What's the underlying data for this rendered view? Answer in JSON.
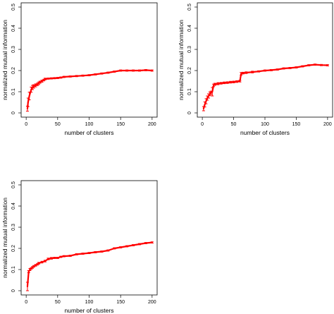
{
  "chart_data": [
    {
      "type": "line",
      "xlabel": "number of clusters",
      "ylabel": "normalized mutual information",
      "xlim": [
        0,
        200
      ],
      "ylim": [
        0,
        0.5
      ],
      "xticks": [
        0,
        50,
        100,
        150,
        200
      ],
      "yticks": [
        0,
        0.1,
        0.2,
        0.3,
        0.4,
        0.5
      ],
      "ytick_labels": [
        "0",
        "0.1",
        "0.2",
        "0.3",
        "0.4",
        "0.5"
      ],
      "series_color": "#ff0000",
      "series": [
        {
          "x": [
            2,
            3,
            5,
            8,
            10,
            12,
            15,
            18,
            20,
            22,
            25,
            28,
            30,
            35,
            40,
            45,
            50,
            55,
            60,
            70,
            80,
            90,
            100,
            110,
            120,
            130,
            140,
            150,
            160,
            170,
            180,
            190,
            200
          ],
          "y": [
            0.02,
            0.05,
            0.08,
            0.11,
            0.12,
            0.125,
            0.13,
            0.135,
            0.14,
            0.145,
            0.15,
            0.155,
            0.16,
            0.162,
            0.163,
            0.164,
            0.165,
            0.167,
            0.17,
            0.172,
            0.174,
            0.176,
            0.178,
            0.182,
            0.186,
            0.19,
            0.195,
            0.2,
            0.2,
            0.2,
            0.2,
            0.202,
            0.2
          ],
          "err": [
            0.012,
            0.02,
            0.018,
            0.012,
            0.01,
            0.008,
            0.007,
            0.006,
            0.006,
            0.005,
            0.005,
            0.004,
            0.004,
            0.003,
            0.003,
            0.003,
            0.003,
            0.003,
            0.003,
            0.003,
            0.003,
            0.003,
            0.003,
            0.003,
            0.003,
            0.003,
            0.003,
            0.003,
            0.003,
            0.003,
            0.003,
            0.003,
            0.003
          ]
        }
      ]
    },
    {
      "type": "line",
      "xlabel": "number of clusters",
      "ylabel": "normalized mutual information",
      "xlim": [
        0,
        200
      ],
      "ylim": [
        0,
        0.5
      ],
      "xticks": [
        0,
        50,
        100,
        150,
        200
      ],
      "yticks": [
        0,
        0.1,
        0.2,
        0.3,
        0.4,
        0.5
      ],
      "ytick_labels": [
        "0",
        "0.1",
        "0.2",
        "0.3",
        "0.4",
        "0.5"
      ],
      "series_color": "#ff0000",
      "series": [
        {
          "x": [
            2,
            4,
            6,
            8,
            10,
            12,
            14,
            16,
            18,
            20,
            25,
            30,
            35,
            40,
            45,
            50,
            55,
            60,
            62,
            65,
            70,
            80,
            90,
            100,
            110,
            120,
            130,
            140,
            150,
            160,
            170,
            180,
            190,
            200
          ],
          "y": [
            0.02,
            0.04,
            0.055,
            0.07,
            0.08,
            0.09,
            0.095,
            0.1,
            0.13,
            0.135,
            0.138,
            0.14,
            0.142,
            0.143,
            0.145,
            0.146,
            0.148,
            0.15,
            0.185,
            0.188,
            0.19,
            0.193,
            0.196,
            0.2,
            0.202,
            0.205,
            0.21,
            0.212,
            0.215,
            0.22,
            0.225,
            0.228,
            0.226,
            0.225
          ],
          "err": [
            0.01,
            0.012,
            0.012,
            0.01,
            0.01,
            0.009,
            0.008,
            0.02,
            0.006,
            0.005,
            0.005,
            0.004,
            0.004,
            0.004,
            0.004,
            0.004,
            0.004,
            0.004,
            0.006,
            0.004,
            0.004,
            0.004,
            0.003,
            0.003,
            0.003,
            0.003,
            0.003,
            0.003,
            0.003,
            0.003,
            0.003,
            0.003,
            0.003,
            0.003
          ]
        }
      ]
    },
    {
      "type": "line",
      "xlabel": "number of clusters",
      "ylabel": "normalized mutual information",
      "xlim": [
        0,
        200
      ],
      "ylim": [
        0,
        0.5
      ],
      "xticks": [
        0,
        50,
        100,
        150,
        200
      ],
      "yticks": [
        0,
        0.1,
        0.2,
        0.3,
        0.4,
        0.5
      ],
      "ytick_labels": [
        "0",
        "0.1",
        "0.2",
        "0.3",
        "0.4",
        "0.5"
      ],
      "series_color": "#ff0000",
      "series": [
        {
          "x": [
            2,
            4,
            6,
            8,
            10,
            12,
            15,
            18,
            20,
            25,
            30,
            35,
            40,
            45,
            50,
            55,
            60,
            70,
            80,
            90,
            100,
            110,
            120,
            130,
            140,
            150,
            160,
            170,
            180,
            190,
            200
          ],
          "y": [
            0.02,
            0.09,
            0.1,
            0.105,
            0.11,
            0.115,
            0.12,
            0.125,
            0.13,
            0.135,
            0.14,
            0.15,
            0.153,
            0.155,
            0.155,
            0.16,
            0.163,
            0.165,
            0.172,
            0.175,
            0.178,
            0.182,
            0.185,
            0.19,
            0.2,
            0.205,
            0.21,
            0.215,
            0.22,
            0.225,
            0.228
          ],
          "err": [
            0.02,
            0.005,
            0.005,
            0.004,
            0.004,
            0.004,
            0.004,
            0.004,
            0.004,
            0.004,
            0.004,
            0.004,
            0.004,
            0.003,
            0.003,
            0.003,
            0.003,
            0.003,
            0.003,
            0.003,
            0.003,
            0.003,
            0.003,
            0.003,
            0.003,
            0.003,
            0.003,
            0.003,
            0.003,
            0.003,
            0.003
          ]
        }
      ]
    }
  ]
}
